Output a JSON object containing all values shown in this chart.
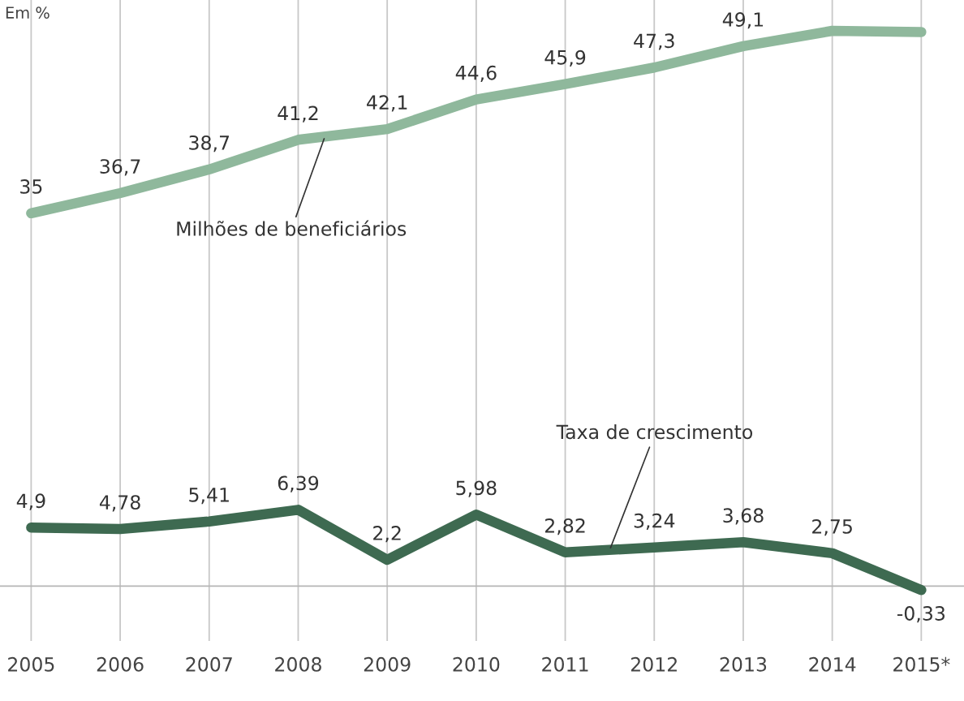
{
  "chart_data": {
    "type": "line",
    "categories": [
      "2005",
      "2006",
      "2007",
      "2008",
      "2009",
      "2010",
      "2011",
      "2012",
      "2013",
      "2014",
      "2015*"
    ],
    "ylim": [
      -1.1,
      53
    ],
    "y2lim": [
      -4.6,
      49.1
    ],
    "tick_labels": "x",
    "grid": "x",
    "legend": false,
    "line_style": "solid",
    "annotations": [
      "Em %"
    ],
    "ref_lines": [
      {
        "axis": "y2",
        "value": 0,
        "color": "#b5b5b5"
      }
    ],
    "series": [
      {
        "name": "Milhões de beneficiários",
        "color": "#8fb89c",
        "values": [
          35,
          36.7,
          38.7,
          41.2,
          42.1,
          44.6,
          45.9,
          47.3,
          49.1,
          50.4,
          50.3
        ],
        "value_labels": [
          "35",
          "36,7",
          "38,7",
          "41,2",
          "42,1",
          "44,6",
          "45,9",
          "47,3",
          "49,1",
          null,
          null
        ]
      },
      {
        "name": "Taxa de crescimento",
        "axis": "y2",
        "color": "#3e6a51",
        "values": [
          4.9,
          4.78,
          5.41,
          6.39,
          2.2,
          5.98,
          2.82,
          3.24,
          3.68,
          2.75,
          -0.33
        ],
        "value_labels": [
          "4,9",
          "4,78",
          "5,41",
          "6,39",
          "2,2",
          "5,98",
          "2,82",
          "3,24",
          "3,68",
          "2,75",
          "-0,33"
        ]
      }
    ]
  }
}
